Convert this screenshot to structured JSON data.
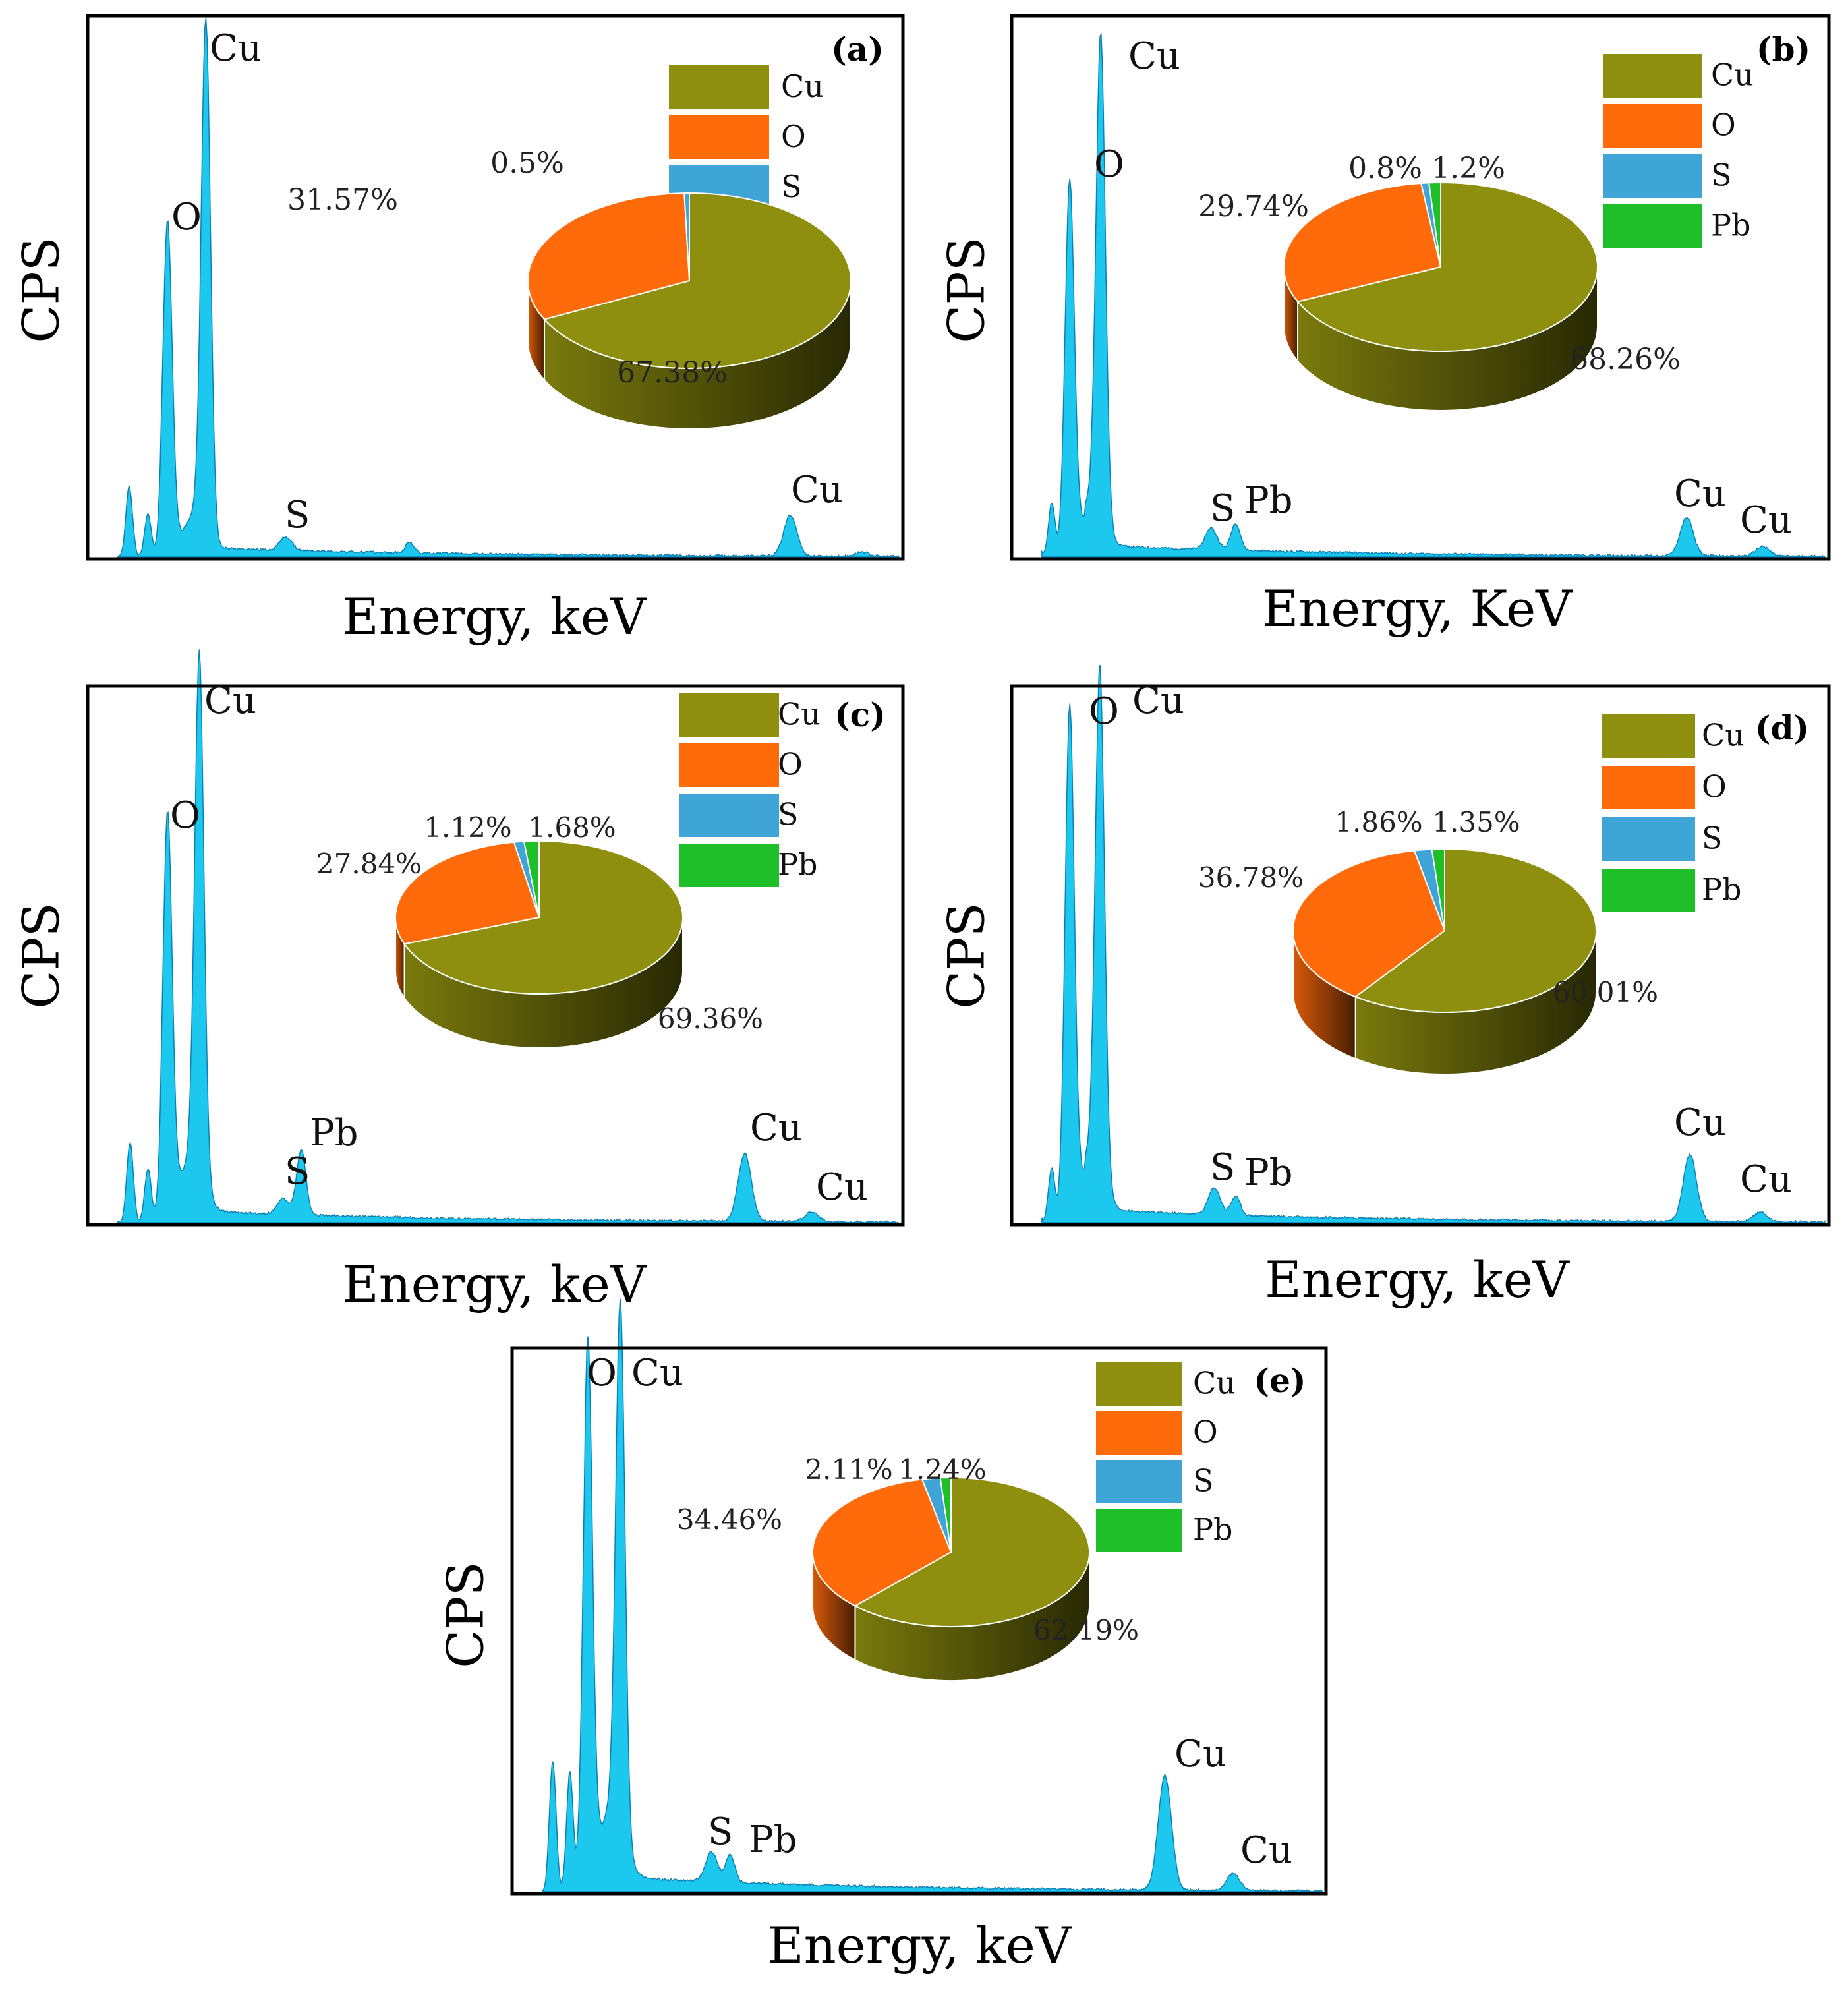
{
  "colors": {
    "Cu": "#8f8f0f",
    "O": "#ff6a0a",
    "S": "#3fa4d6",
    "Pb": "#1fbf2a",
    "spectrum": "#1cc8ee",
    "spectrum_edge": "#0c7fb5"
  },
  "chart_data": [
    {
      "type": "spectrum",
      "panel": "(a)",
      "xlabel": "Energy, keV",
      "ylabel": "CPS",
      "peak_labels": [
        "O",
        "Cu",
        "S",
        "Cu"
      ],
      "pie": {
        "legend": [
          "Cu",
          "O",
          "S"
        ],
        "slices": [
          {
            "name": "Cu",
            "value": 67.38,
            "label": "67.38%"
          },
          {
            "name": "O",
            "value": 31.57,
            "label": "31.57%"
          },
          {
            "name": "S",
            "value": 0.5,
            "label": "0.5%"
          }
        ]
      }
    },
    {
      "type": "spectrum",
      "panel": "(b)",
      "xlabel": "Energy, KeV",
      "ylabel": "CPS",
      "peak_labels": [
        "O",
        "Cu",
        "S",
        "Pb",
        "Cu",
        "Cu"
      ],
      "pie": {
        "legend": [
          "Cu",
          "O",
          "S",
          "Pb"
        ],
        "slices": [
          {
            "name": "Cu",
            "value": 68.26,
            "label": "68.26%"
          },
          {
            "name": "O",
            "value": 29.74,
            "label": "29.74%"
          },
          {
            "name": "S",
            "value": 0.8,
            "label": "0.8%"
          },
          {
            "name": "Pb",
            "value": 1.2,
            "label": "1.2%"
          }
        ]
      }
    },
    {
      "type": "spectrum",
      "panel": "(c)",
      "xlabel": "Energy, keV",
      "ylabel": "CPS",
      "peak_labels": [
        "O",
        "Cu",
        "S",
        "Pb",
        "Cu",
        "Cu"
      ],
      "pie": {
        "legend": [
          "Cu",
          "O",
          "S",
          "Pb"
        ],
        "slices": [
          {
            "name": "Cu",
            "value": 69.36,
            "label": "69.36%"
          },
          {
            "name": "O",
            "value": 27.84,
            "label": "27.84%"
          },
          {
            "name": "S",
            "value": 1.12,
            "label": "1.12%"
          },
          {
            "name": "Pb",
            "value": 1.68,
            "label": "1.68%"
          }
        ]
      }
    },
    {
      "type": "spectrum",
      "panel": "(d)",
      "xlabel": "Energy, keV",
      "ylabel": "CPS",
      "peak_labels": [
        "O",
        "Cu",
        "S",
        "Pb",
        "Cu",
        "Cu"
      ],
      "pie": {
        "legend": [
          "Cu",
          "O",
          "S",
          "Pb"
        ],
        "slices": [
          {
            "name": "Cu",
            "value": 60.01,
            "label": "60.01%"
          },
          {
            "name": "O",
            "value": 36.78,
            "label": "36.78%"
          },
          {
            "name": "S",
            "value": 1.86,
            "label": "1.86%"
          },
          {
            "name": "Pb",
            "value": 1.35,
            "label": "1.35%"
          }
        ]
      }
    },
    {
      "type": "spectrum",
      "panel": "(e)",
      "xlabel": "Energy, keV",
      "ylabel": "CPS",
      "peak_labels": [
        "O",
        "Cu",
        "S",
        "Pb",
        "Cu",
        "Cu"
      ],
      "pie": {
        "legend": [
          "Cu",
          "O",
          "S",
          "Pb"
        ],
        "slices": [
          {
            "name": "Cu",
            "value": 62.19,
            "label": "62.19%"
          },
          {
            "name": "O",
            "value": 34.46,
            "label": "34.46%"
          },
          {
            "name": "S",
            "value": 2.11,
            "label": "2.11%"
          },
          {
            "name": "Pb",
            "value": 1.24,
            "label": "1.24%"
          }
        ]
      }
    }
  ]
}
